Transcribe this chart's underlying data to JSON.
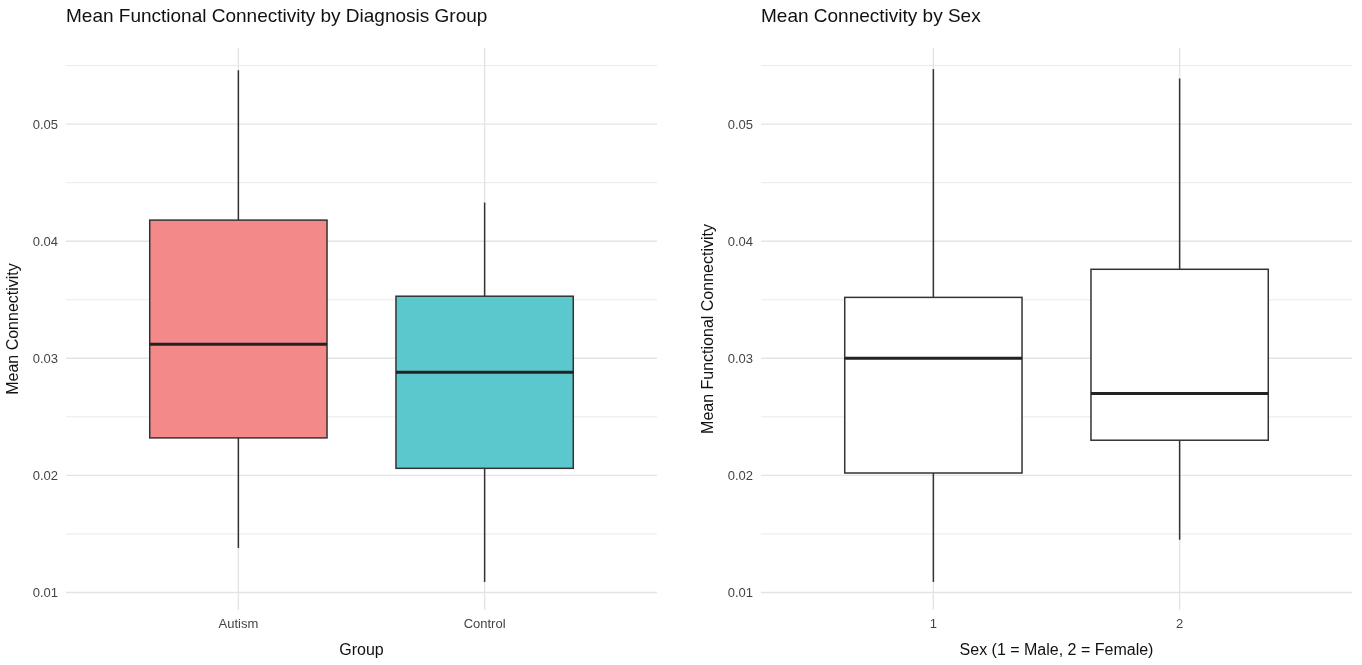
{
  "chart_data": [
    {
      "type": "box",
      "title": "Mean Functional Connectivity by Diagnosis Group",
      "xlabel": "Group",
      "ylabel": "Mean Connectivity",
      "categories": [
        "Autism",
        "Control"
      ],
      "colors": [
        "#f4898a",
        "#5bc8cd"
      ],
      "boxes": [
        {
          "low": 0.0138,
          "q1": 0.0232,
          "median": 0.0312,
          "q3": 0.0418,
          "high": 0.0546
        },
        {
          "low": 0.0109,
          "q1": 0.0206,
          "median": 0.0288,
          "q3": 0.0353,
          "high": 0.0433
        }
      ],
      "ylim": [
        0.0085,
        0.0565
      ],
      "yticks": [
        0.01,
        {
          "value": 0.015,
          "label": null
        },
        0.02,
        {
          "value": 0.025,
          "label": null
        },
        0.03,
        {
          "value": 0.035,
          "label": null
        },
        0.04,
        {
          "value": 0.045,
          "label": null
        },
        0.05,
        {
          "value": 0.055,
          "label": null
        }
      ],
      "grid": true
    },
    {
      "type": "box",
      "title": "Mean Connectivity by Sex",
      "xlabel": "Sex (1 = Male, 2 = Female)",
      "ylabel": "Mean Functional Connectivity",
      "categories": [
        "1",
        "2"
      ],
      "colors": [
        "#ffffff",
        "#ffffff"
      ],
      "boxes": [
        {
          "low": 0.0109,
          "q1": 0.0202,
          "median": 0.03,
          "q3": 0.0352,
          "high": 0.0547
        },
        {
          "low": 0.0145,
          "q1": 0.023,
          "median": 0.027,
          "q3": 0.0376,
          "high": 0.0539
        }
      ],
      "ylim": [
        0.0085,
        0.0565
      ],
      "yticks": [
        0.01,
        {
          "value": 0.015,
          "label": null
        },
        0.02,
        {
          "value": 0.025,
          "label": null
        },
        0.03,
        {
          "value": 0.035,
          "label": null
        },
        0.04,
        {
          "value": 0.045,
          "label": null
        },
        0.05,
        {
          "value": 0.055,
          "label": null
        }
      ],
      "grid": true
    }
  ]
}
